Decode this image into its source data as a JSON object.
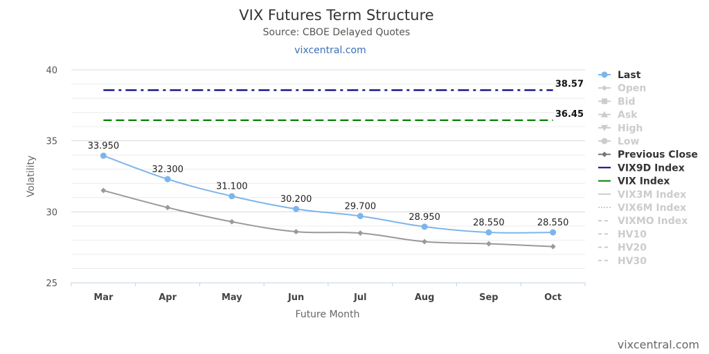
{
  "chart": {
    "title": "VIX Futures Term Structure",
    "subtitle": "Source: CBOE Delayed Quotes",
    "link": "vixcentral.com",
    "credit": "vixcentral.com"
  },
  "chart_data": {
    "type": "line",
    "title": "VIX Futures Term Structure",
    "subtitle": "Source: CBOE Delayed Quotes",
    "xlabel": "Future Month",
    "ylabel": "Volatility",
    "categories": [
      "Mar",
      "Apr",
      "May",
      "Jun",
      "Jul",
      "Aug",
      "Sep",
      "Oct"
    ],
    "ylim": [
      25,
      40
    ],
    "yticks": [
      25,
      30,
      35,
      40
    ],
    "grid": true,
    "legend_position": "right",
    "series": [
      {
        "name": "Last",
        "values": [
          33.95,
          32.3,
          31.1,
          30.2,
          29.7,
          28.95,
          28.55,
          28.55
        ],
        "labels": [
          "33.950",
          "32.300",
          "31.100",
          "30.200",
          "29.700",
          "28.950",
          "28.550",
          "28.550"
        ],
        "color": "#7cb5ec",
        "marker": "circle",
        "visible": true
      },
      {
        "name": "Previous Close",
        "values": [
          31.5,
          30.3,
          29.3,
          28.6,
          28.5,
          27.9,
          27.75,
          27.55
        ],
        "color": "#999999",
        "marker": "diamond",
        "visible": true
      },
      {
        "name": "VIX9D Index",
        "constant": 38.57,
        "label": "38.57",
        "color": "#000080",
        "dash": "dashdot",
        "visible": true
      },
      {
        "name": "VIX Index",
        "constant": 36.45,
        "label": "36.45",
        "color": "#008000",
        "dash": "dash",
        "visible": true
      }
    ]
  },
  "legend": [
    {
      "name": "Last",
      "symbol": "circle-line",
      "color": "#7cb5ec",
      "active": true
    },
    {
      "name": "Open",
      "symbol": "diamond-line",
      "color": "#cccccc",
      "active": false
    },
    {
      "name": "Bid",
      "symbol": "square-line",
      "color": "#cccccc",
      "active": false
    },
    {
      "name": "Ask",
      "symbol": "triangle-line",
      "color": "#cccccc",
      "active": false
    },
    {
      "name": "High",
      "symbol": "triangle-down-line",
      "color": "#cccccc",
      "active": false
    },
    {
      "name": "Low",
      "symbol": "circle-line",
      "color": "#cccccc",
      "active": false
    },
    {
      "name": "Previous Close",
      "symbol": "diamond-line",
      "color": "#777777",
      "active": true
    },
    {
      "name": "VIX9D Index",
      "symbol": "solid-line",
      "color": "#000080",
      "active": true
    },
    {
      "name": "VIX Index",
      "symbol": "solid-line",
      "color": "#008000",
      "active": true
    },
    {
      "name": "VIX3M Index",
      "symbol": "solid-line",
      "color": "#cccccc",
      "active": false
    },
    {
      "name": "VIX6M Index",
      "symbol": "dotted-line",
      "color": "#cccccc",
      "active": false
    },
    {
      "name": "VIXMO Index",
      "symbol": "dashed-line",
      "color": "#cccccc",
      "active": false
    },
    {
      "name": "HV10",
      "symbol": "dashed-line",
      "color": "#cccccc",
      "active": false
    },
    {
      "name": "HV20",
      "symbol": "dashed-line",
      "color": "#cccccc",
      "active": false
    },
    {
      "name": "HV30",
      "symbol": "dashed-line",
      "color": "#cccccc",
      "active": false
    }
  ],
  "colors": {
    "inactive_text": "#cccccc",
    "active_text": "#333333",
    "grid": "#e6e6e6"
  }
}
